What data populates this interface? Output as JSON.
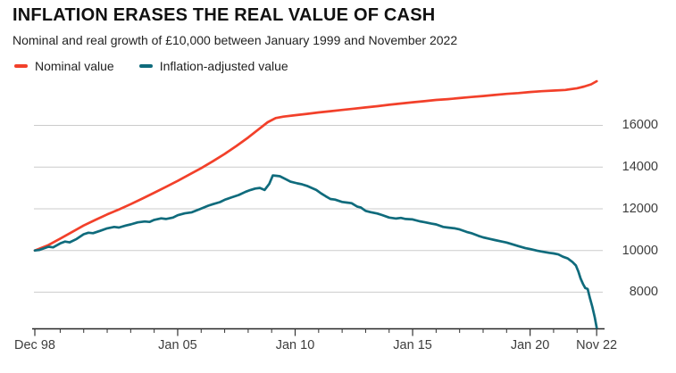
{
  "header": {
    "title": "INFLATION ERASES THE REAL VALUE OF CASH",
    "subtitle": "Nominal and real growth of £10,000 between January 1999 and November 2022"
  },
  "legend": {
    "items": [
      {
        "label": "Nominal value",
        "color": "#f2402a"
      },
      {
        "label": "Inflation-adjusted value",
        "color": "#0f6b7c"
      }
    ]
  },
  "chart_data": {
    "type": "line",
    "title": "INFLATION ERASES THE REAL VALUE OF CASH",
    "subtitle": "Nominal and real growth of £10,000 between January 1999 and November 2022",
    "xlabel": "",
    "ylabel": "",
    "grid": "horizontal",
    "legend_position": "top-left",
    "y_axis_side": "right",
    "x_domain": [
      1998.92,
      2022.833
    ],
    "y_ticks": [
      {
        "value": 16000,
        "label": "16000"
      },
      {
        "value": 14000,
        "label": "14000"
      },
      {
        "value": 12000,
        "label": "12000"
      },
      {
        "value": 10000,
        "label": "10000"
      },
      {
        "value": 8000,
        "label": "8000"
      }
    ],
    "x_ticks_major": [
      {
        "label": "Dec 98",
        "year": 1998.92
      },
      {
        "label": "Jan 05",
        "year": 2005
      },
      {
        "label": "Jan 10",
        "year": 2010
      },
      {
        "label": "Jan 15",
        "year": 2015
      },
      {
        "label": "Jan 20",
        "year": 2020
      },
      {
        "label": "Nov 22",
        "year": 2022.833
      }
    ],
    "x_ticks_minor_years": [
      2000,
      2001,
      2002,
      2003,
      2004,
      2006,
      2007,
      2008,
      2009,
      2011,
      2012,
      2013,
      2014,
      2016,
      2017,
      2018,
      2019,
      2021,
      2022
    ],
    "series": [
      {
        "name": "Nominal value",
        "color": "#f2402a",
        "points": [
          [
            1998.92,
            10000
          ],
          [
            1999.5,
            10260
          ],
          [
            2000,
            10570
          ],
          [
            2000.5,
            10880
          ],
          [
            2001,
            11200
          ],
          [
            2001.5,
            11470
          ],
          [
            2002,
            11730
          ],
          [
            2002.5,
            11970
          ],
          [
            2003,
            12220
          ],
          [
            2003.5,
            12490
          ],
          [
            2004,
            12770
          ],
          [
            2004.5,
            13050
          ],
          [
            2005,
            13340
          ],
          [
            2005.5,
            13640
          ],
          [
            2006,
            13950
          ],
          [
            2006.5,
            14280
          ],
          [
            2007,
            14630
          ],
          [
            2007.5,
            15010
          ],
          [
            2008,
            15420
          ],
          [
            2008.5,
            15860
          ],
          [
            2008.83,
            16150
          ],
          [
            2009.17,
            16350
          ],
          [
            2009.5,
            16420
          ],
          [
            2010,
            16490
          ],
          [
            2010.5,
            16550
          ],
          [
            2011,
            16620
          ],
          [
            2011.5,
            16680
          ],
          [
            2012,
            16740
          ],
          [
            2012.5,
            16800
          ],
          [
            2013,
            16860
          ],
          [
            2013.5,
            16920
          ],
          [
            2014,
            16990
          ],
          [
            2014.5,
            17050
          ],
          [
            2015,
            17110
          ],
          [
            2015.5,
            17160
          ],
          [
            2016,
            17220
          ],
          [
            2016.5,
            17260
          ],
          [
            2017,
            17310
          ],
          [
            2017.5,
            17360
          ],
          [
            2018,
            17410
          ],
          [
            2018.5,
            17460
          ],
          [
            2019,
            17510
          ],
          [
            2019.5,
            17550
          ],
          [
            2020,
            17600
          ],
          [
            2020.5,
            17640
          ],
          [
            2021,
            17670
          ],
          [
            2021.5,
            17700
          ],
          [
            2022,
            17780
          ],
          [
            2022.3,
            17860
          ],
          [
            2022.6,
            17970
          ],
          [
            2022.833,
            18120
          ]
        ]
      },
      {
        "name": "Inflation-adjusted value",
        "color": "#0f6b7c",
        "points": [
          [
            1998.92,
            10000
          ],
          [
            1999.1,
            10020
          ],
          [
            1999.3,
            10100
          ],
          [
            1999.5,
            10180
          ],
          [
            1999.7,
            10150
          ],
          [
            2000,
            10340
          ],
          [
            2000.2,
            10430
          ],
          [
            2000.4,
            10390
          ],
          [
            2000.7,
            10550
          ],
          [
            2001,
            10780
          ],
          [
            2001.2,
            10850
          ],
          [
            2001.4,
            10830
          ],
          [
            2001.7,
            10940
          ],
          [
            2002,
            11060
          ],
          [
            2002.3,
            11130
          ],
          [
            2002.5,
            11100
          ],
          [
            2002.8,
            11200
          ],
          [
            2003,
            11250
          ],
          [
            2003.3,
            11350
          ],
          [
            2003.6,
            11390
          ],
          [
            2003.8,
            11370
          ],
          [
            2004,
            11470
          ],
          [
            2004.3,
            11540
          ],
          [
            2004.5,
            11510
          ],
          [
            2004.8,
            11580
          ],
          [
            2005,
            11690
          ],
          [
            2005.3,
            11780
          ],
          [
            2005.6,
            11830
          ],
          [
            2006,
            12010
          ],
          [
            2006.3,
            12150
          ],
          [
            2006.5,
            12220
          ],
          [
            2006.8,
            12320
          ],
          [
            2007,
            12430
          ],
          [
            2007.3,
            12550
          ],
          [
            2007.6,
            12660
          ],
          [
            2007.9,
            12820
          ],
          [
            2008.1,
            12900
          ],
          [
            2008.3,
            12970
          ],
          [
            2008.5,
            13000
          ],
          [
            2008.7,
            12900
          ],
          [
            2008.9,
            13200
          ],
          [
            2009.05,
            13600
          ],
          [
            2009.2,
            13580
          ],
          [
            2009.35,
            13560
          ],
          [
            2009.6,
            13420
          ],
          [
            2009.8,
            13300
          ],
          [
            2010.1,
            13220
          ],
          [
            2010.3,
            13170
          ],
          [
            2010.5,
            13100
          ],
          [
            2010.75,
            12980
          ],
          [
            2010.9,
            12900
          ],
          [
            2011.1,
            12740
          ],
          [
            2011.3,
            12600
          ],
          [
            2011.5,
            12470
          ],
          [
            2011.7,
            12440
          ],
          [
            2012,
            12330
          ],
          [
            2012.2,
            12300
          ],
          [
            2012.4,
            12270
          ],
          [
            2012.65,
            12100
          ],
          [
            2012.8,
            12060
          ],
          [
            2013,
            11900
          ],
          [
            2013.2,
            11840
          ],
          [
            2013.5,
            11770
          ],
          [
            2013.7,
            11700
          ],
          [
            2014,
            11580
          ],
          [
            2014.3,
            11530
          ],
          [
            2014.5,
            11560
          ],
          [
            2014.7,
            11510
          ],
          [
            2015,
            11490
          ],
          [
            2015.3,
            11400
          ],
          [
            2015.5,
            11360
          ],
          [
            2015.8,
            11290
          ],
          [
            2016,
            11250
          ],
          [
            2016.3,
            11130
          ],
          [
            2016.5,
            11100
          ],
          [
            2016.8,
            11060
          ],
          [
            2017,
            11010
          ],
          [
            2017.3,
            10890
          ],
          [
            2017.5,
            10830
          ],
          [
            2017.8,
            10700
          ],
          [
            2018,
            10630
          ],
          [
            2018.3,
            10550
          ],
          [
            2018.5,
            10500
          ],
          [
            2018.8,
            10430
          ],
          [
            2019,
            10380
          ],
          [
            2019.3,
            10280
          ],
          [
            2019.5,
            10210
          ],
          [
            2019.8,
            10110
          ],
          [
            2020,
            10070
          ],
          [
            2020.3,
            9990
          ],
          [
            2020.5,
            9950
          ],
          [
            2020.8,
            9890
          ],
          [
            2021,
            9860
          ],
          [
            2021.2,
            9810
          ],
          [
            2021.4,
            9700
          ],
          [
            2021.6,
            9620
          ],
          [
            2021.8,
            9450
          ],
          [
            2021.95,
            9280
          ],
          [
            2022.05,
            9000
          ],
          [
            2022.15,
            8650
          ],
          [
            2022.25,
            8400
          ],
          [
            2022.35,
            8200
          ],
          [
            2022.45,
            8150
          ],
          [
            2022.55,
            7700
          ],
          [
            2022.65,
            7300
          ],
          [
            2022.75,
            6800
          ],
          [
            2022.833,
            6300
          ]
        ]
      }
    ]
  }
}
